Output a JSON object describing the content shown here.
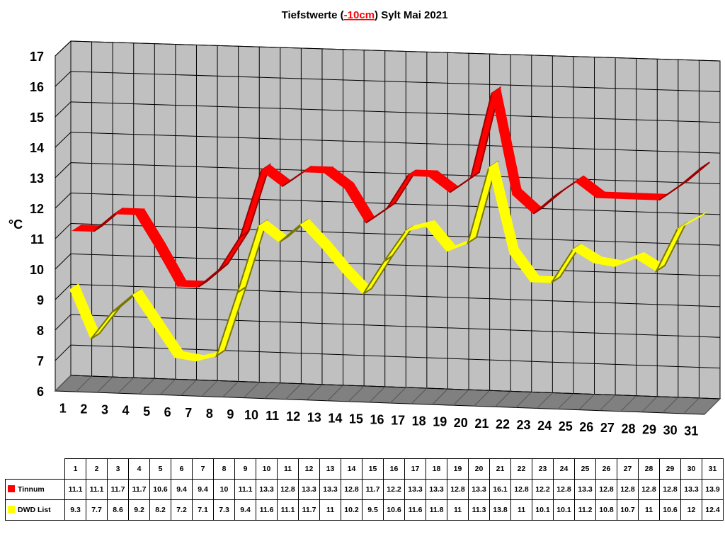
{
  "chart_data": {
    "type": "line",
    "title_prefix": "Tiefstwerte (",
    "title_highlight": "-10cm",
    "title_suffix": ") Sylt Mai 2021",
    "ylabel": "°C",
    "ylim": [
      6,
      17
    ],
    "yticks": [
      6,
      7,
      8,
      9,
      10,
      11,
      12,
      13,
      14,
      15,
      16,
      17
    ],
    "grid": true,
    "categories": [
      "1",
      "2",
      "3",
      "4",
      "5",
      "6",
      "7",
      "8",
      "9",
      "10",
      "11",
      "12",
      "13",
      "14",
      "15",
      "16",
      "17",
      "18",
      "19",
      "20",
      "21",
      "22",
      "23",
      "24",
      "25",
      "26",
      "27",
      "28",
      "29",
      "30",
      "31"
    ],
    "series": [
      {
        "name": "Tinnum",
        "color": "#ff0000",
        "dark": "#990000",
        "values": [
          11.1,
          11.1,
          11.7,
          11.7,
          10.6,
          9.4,
          9.4,
          10,
          11.1,
          13.3,
          12.8,
          13.3,
          13.3,
          12.8,
          11.7,
          12.2,
          13.3,
          13.3,
          12.8,
          13.3,
          16.1,
          12.8,
          12.2,
          12.8,
          13.3,
          12.8,
          12.8,
          12.8,
          12.8,
          13.3,
          13.9
        ]
      },
      {
        "name": "DWD List",
        "color": "#ffff00",
        "dark": "#777700",
        "values": [
          9.3,
          7.7,
          8.6,
          9.2,
          8.2,
          7.2,
          7.1,
          7.3,
          9.4,
          11.6,
          11.1,
          11.7,
          11,
          10.2,
          9.5,
          10.6,
          11.6,
          11.8,
          11,
          11.3,
          13.8,
          11,
          10.1,
          10.1,
          11.2,
          10.8,
          10.7,
          11,
          10.6,
          12,
          12.4
        ]
      }
    ],
    "table_values": {
      "Tinnum": [
        "11.1",
        "11.1",
        "11.7",
        "11.7",
        "10.6",
        "9.4",
        "9.4",
        "10",
        "11.1",
        "13.3",
        "12.8",
        "13.3",
        "13.3",
        "12.8",
        "11.7",
        "12.2",
        "13.3",
        "13.3",
        "12.8",
        "13.3",
        "16.1",
        "12.8",
        "12.2",
        "12.8",
        "13.3",
        "12.8",
        "12.8",
        "12.8",
        "12.8",
        "13.3",
        "13.9"
      ],
      "DWD List": [
        "9.3",
        "7.7",
        "8.6",
        "9.2",
        "8.2",
        "7.2",
        "7.1",
        "7.3",
        "9.4",
        "11.6",
        "11.1",
        "11.7",
        "11",
        "10.2",
        "9.5",
        "10.6",
        "11.6",
        "11.8",
        "11",
        "11.3",
        "13.8",
        "11",
        "10.1",
        "10.1",
        "11.2",
        "10.8",
        "10.7",
        "11",
        "10.6",
        "12",
        "12.4"
      ]
    },
    "colors": {
      "wall": "#c0c0c0",
      "floor": "#808080",
      "grid": "#000000"
    }
  }
}
